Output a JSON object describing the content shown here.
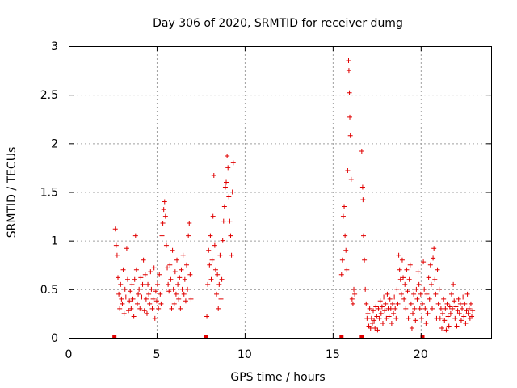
{
  "chart_data": {
    "type": "scatter",
    "title": "Day 306 of 2020, SRMTID for receiver dumg",
    "xlabel": "GPS time / hours",
    "ylabel": "SRMTID / TECUs",
    "xlim": [
      0,
      24
    ],
    "ylim": [
      0,
      3
    ],
    "xticks": [
      "0",
      "5",
      "10",
      "15",
      "20"
    ],
    "yticks": [
      "0",
      "0.5",
      "1",
      "1.5",
      "2",
      "2.5",
      "3"
    ],
    "grid": true,
    "marker": "+",
    "color": "#e00000",
    "zero_markers_x": [
      2.6,
      7.8,
      15.5,
      16.65,
      20.1
    ],
    "series": [
      {
        "name": "SRMTID",
        "points": [
          [
            2.65,
            1.12
          ],
          [
            2.7,
            0.95
          ],
          [
            2.75,
            0.85
          ],
          [
            2.8,
            0.62
          ],
          [
            2.85,
            0.45
          ],
          [
            2.9,
            0.3
          ],
          [
            2.95,
            0.55
          ],
          [
            3.0,
            0.4
          ],
          [
            3.05,
            0.35
          ],
          [
            3.1,
            0.7
          ],
          [
            3.15,
            0.25
          ],
          [
            3.2,
            0.5
          ],
          [
            3.25,
            0.42
          ],
          [
            3.3,
            0.92
          ],
          [
            3.35,
            0.6
          ],
          [
            3.4,
            0.28
          ],
          [
            3.45,
            0.38
          ],
          [
            3.5,
            0.48
          ],
          [
            3.55,
            0.3
          ],
          [
            3.6,
            0.55
          ],
          [
            3.65,
            0.4
          ],
          [
            3.7,
            0.22
          ],
          [
            3.75,
            0.6
          ],
          [
            3.8,
            1.05
          ],
          [
            3.85,
            0.7
          ],
          [
            3.9,
            0.35
          ],
          [
            3.95,
            0.45
          ],
          [
            4.0,
            0.5
          ],
          [
            4.05,
            0.3
          ],
          [
            4.1,
            0.62
          ],
          [
            4.15,
            0.42
          ],
          [
            4.2,
            0.55
          ],
          [
            4.25,
            0.8
          ],
          [
            4.3,
            0.28
          ],
          [
            4.35,
            0.65
          ],
          [
            4.4,
            0.4
          ],
          [
            4.45,
            0.25
          ],
          [
            4.5,
            0.55
          ],
          [
            4.55,
            0.45
          ],
          [
            4.6,
            0.35
          ],
          [
            4.65,
            0.68
          ],
          [
            4.7,
            0.5
          ],
          [
            4.75,
            0.3
          ],
          [
            4.8,
            0.4
          ],
          [
            4.85,
            0.72
          ],
          [
            4.9,
            0.2
          ],
          [
            4.95,
            0.48
          ],
          [
            5.0,
            0.38
          ],
          [
            5.05,
            0.55
          ],
          [
            5.1,
            0.3
          ],
          [
            5.15,
            0.65
          ],
          [
            5.2,
            0.45
          ],
          [
            5.25,
            0.35
          ],
          [
            5.3,
            1.05
          ],
          [
            5.35,
            1.18
          ],
          [
            5.4,
            1.32
          ],
          [
            5.45,
            1.4
          ],
          [
            5.5,
            1.25
          ],
          [
            5.55,
            0.95
          ],
          [
            5.6,
            0.72
          ],
          [
            5.65,
            0.55
          ],
          [
            5.7,
            0.48
          ],
          [
            5.75,
            0.75
          ],
          [
            5.8,
            0.6
          ],
          [
            5.85,
            0.3
          ],
          [
            5.9,
            0.9
          ],
          [
            5.95,
            0.5
          ],
          [
            6.0,
            0.35
          ],
          [
            6.05,
            0.68
          ],
          [
            6.1,
            0.45
          ],
          [
            6.15,
            0.8
          ],
          [
            6.2,
            0.55
          ],
          [
            6.25,
            0.4
          ],
          [
            6.3,
            0.62
          ],
          [
            6.35,
            0.3
          ],
          [
            6.4,
            0.7
          ],
          [
            6.45,
            0.5
          ],
          [
            6.5,
            0.85
          ],
          [
            6.55,
            0.45
          ],
          [
            6.6,
            0.6
          ],
          [
            6.65,
            0.38
          ],
          [
            6.7,
            0.75
          ],
          [
            6.75,
            0.5
          ],
          [
            6.8,
            1.05
          ],
          [
            6.85,
            1.18
          ],
          [
            6.9,
            0.65
          ],
          [
            6.95,
            0.4
          ],
          [
            7.85,
            0.22
          ],
          [
            7.9,
            0.55
          ],
          [
            7.95,
            0.9
          ],
          [
            8.0,
            0.75
          ],
          [
            8.05,
            1.05
          ],
          [
            8.1,
            0.6
          ],
          [
            8.15,
            0.8
          ],
          [
            8.2,
            1.25
          ],
          [
            8.25,
            1.67
          ],
          [
            8.3,
            0.95
          ],
          [
            8.35,
            0.7
          ],
          [
            8.4,
            0.45
          ],
          [
            8.45,
            0.65
          ],
          [
            8.5,
            0.3
          ],
          [
            8.55,
            0.55
          ],
          [
            8.6,
            0.85
          ],
          [
            8.65,
            0.4
          ],
          [
            8.7,
            0.6
          ],
          [
            8.75,
            1.0
          ],
          [
            8.8,
            1.2
          ],
          [
            8.85,
            1.35
          ],
          [
            8.9,
            1.55
          ],
          [
            8.95,
            1.6
          ],
          [
            9.0,
            1.87
          ],
          [
            9.05,
            1.75
          ],
          [
            9.1,
            1.45
          ],
          [
            9.15,
            1.2
          ],
          [
            9.2,
            1.05
          ],
          [
            9.25,
            0.85
          ],
          [
            9.3,
            1.5
          ],
          [
            9.35,
            1.8
          ],
          [
            15.5,
            0.65
          ],
          [
            15.55,
            0.8
          ],
          [
            15.6,
            1.25
          ],
          [
            15.65,
            1.35
          ],
          [
            15.7,
            1.05
          ],
          [
            15.75,
            0.9
          ],
          [
            15.8,
            0.7
          ],
          [
            15.85,
            1.72
          ],
          [
            15.9,
            2.85
          ],
          [
            15.92,
            2.75
          ],
          [
            15.95,
            2.52
          ],
          [
            15.97,
            2.27
          ],
          [
            16.0,
            2.08
          ],
          [
            16.05,
            1.63
          ],
          [
            16.1,
            0.4
          ],
          [
            16.15,
            0.35
          ],
          [
            16.2,
            0.5
          ],
          [
            16.25,
            0.45
          ],
          [
            16.65,
            1.92
          ],
          [
            16.7,
            1.55
          ],
          [
            16.72,
            1.42
          ],
          [
            16.75,
            1.05
          ],
          [
            16.8,
            0.8
          ],
          [
            16.85,
            0.5
          ],
          [
            16.9,
            0.35
          ],
          [
            16.95,
            0.2
          ],
          [
            17.0,
            0.25
          ],
          [
            17.05,
            0.12
          ],
          [
            17.1,
            0.3
          ],
          [
            17.15,
            0.1
          ],
          [
            17.2,
            0.2
          ],
          [
            17.25,
            0.15
          ],
          [
            17.3,
            0.28
          ],
          [
            17.35,
            0.18
          ],
          [
            17.4,
            0.1
          ],
          [
            17.45,
            0.32
          ],
          [
            17.5,
            0.22
          ],
          [
            17.55,
            0.08
          ],
          [
            17.6,
            0.3
          ],
          [
            17.65,
            0.2
          ],
          [
            17.7,
            0.38
          ],
          [
            17.75,
            0.25
          ],
          [
            17.8,
            0.32
          ],
          [
            17.85,
            0.15
          ],
          [
            17.9,
            0.42
          ],
          [
            17.95,
            0.28
          ],
          [
            18.0,
            0.35
          ],
          [
            18.05,
            0.2
          ],
          [
            18.1,
            0.45
          ],
          [
            18.15,
            0.3
          ],
          [
            18.2,
            0.22
          ],
          [
            18.25,
            0.4
          ],
          [
            18.3,
            0.3
          ],
          [
            18.35,
            0.15
          ],
          [
            18.4,
            0.35
          ],
          [
            18.45,
            0.25
          ],
          [
            18.5,
            0.42
          ],
          [
            18.55,
            0.3
          ],
          [
            18.6,
            0.2
          ],
          [
            18.65,
            0.5
          ],
          [
            18.7,
            0.35
          ],
          [
            18.75,
            0.85
          ],
          [
            18.8,
            0.7
          ],
          [
            18.85,
            0.6
          ],
          [
            18.9,
            0.45
          ],
          [
            18.95,
            0.8
          ],
          [
            19.0,
            0.62
          ],
          [
            19.05,
            0.4
          ],
          [
            19.1,
            0.55
          ],
          [
            19.15,
            0.3
          ],
          [
            19.2,
            0.7
          ],
          [
            19.25,
            0.48
          ],
          [
            19.3,
            0.2
          ],
          [
            19.35,
            0.6
          ],
          [
            19.4,
            0.75
          ],
          [
            19.45,
            0.35
          ],
          [
            19.5,
            0.1
          ],
          [
            19.55,
            0.25
          ],
          [
            19.6,
            0.45
          ],
          [
            19.65,
            0.3
          ],
          [
            19.7,
            0.18
          ],
          [
            19.75,
            0.5
          ],
          [
            19.8,
            0.4
          ],
          [
            19.85,
            0.68
          ],
          [
            19.9,
            0.55
          ],
          [
            19.95,
            0.3
          ],
          [
            20.0,
            0.45
          ],
          [
            20.05,
            0.2
          ],
          [
            20.1,
            0.35
          ],
          [
            20.15,
            0.78
          ],
          [
            20.2,
            0.5
          ],
          [
            20.25,
            0.3
          ],
          [
            20.3,
            0.15
          ],
          [
            20.35,
            0.45
          ],
          [
            20.4,
            0.25
          ],
          [
            20.45,
            0.62
          ],
          [
            20.5,
            0.4
          ],
          [
            20.55,
            0.75
          ],
          [
            20.6,
            0.55
          ],
          [
            20.65,
            0.3
          ],
          [
            20.7,
            0.82
          ],
          [
            20.75,
            0.92
          ],
          [
            20.8,
            0.6
          ],
          [
            20.85,
            0.45
          ],
          [
            20.9,
            0.2
          ],
          [
            20.95,
            0.7
          ],
          [
            21.0,
            0.35
          ],
          [
            21.05,
            0.5
          ],
          [
            21.1,
            0.2
          ],
          [
            21.15,
            0.3
          ],
          [
            21.2,
            0.1
          ],
          [
            21.25,
            0.25
          ],
          [
            21.3,
            0.4
          ],
          [
            21.35,
            0.18
          ],
          [
            21.4,
            0.3
          ],
          [
            21.45,
            0.08
          ],
          [
            21.5,
            0.35
          ],
          [
            21.55,
            0.22
          ],
          [
            21.6,
            0.12
          ],
          [
            21.65,
            0.32
          ],
          [
            21.7,
            0.25
          ],
          [
            21.75,
            0.45
          ],
          [
            21.8,
            0.3
          ],
          [
            21.85,
            0.55
          ],
          [
            21.9,
            0.38
          ],
          [
            21.95,
            0.2
          ],
          [
            22.0,
            0.32
          ],
          [
            22.05,
            0.12
          ],
          [
            22.1,
            0.28
          ],
          [
            22.15,
            0.4
          ],
          [
            22.2,
            0.25
          ],
          [
            22.25,
            0.35
          ],
          [
            22.3,
            0.18
          ],
          [
            22.35,
            0.3
          ],
          [
            22.4,
            0.42
          ],
          [
            22.45,
            0.22
          ],
          [
            22.5,
            0.35
          ],
          [
            22.55,
            0.15
          ],
          [
            22.6,
            0.28
          ],
          [
            22.65,
            0.45
          ],
          [
            22.7,
            0.25
          ],
          [
            22.75,
            0.3
          ],
          [
            22.8,
            0.2
          ],
          [
            22.85,
            0.35
          ],
          [
            22.9,
            0.22
          ],
          [
            22.95,
            0.28
          ]
        ]
      }
    ]
  }
}
